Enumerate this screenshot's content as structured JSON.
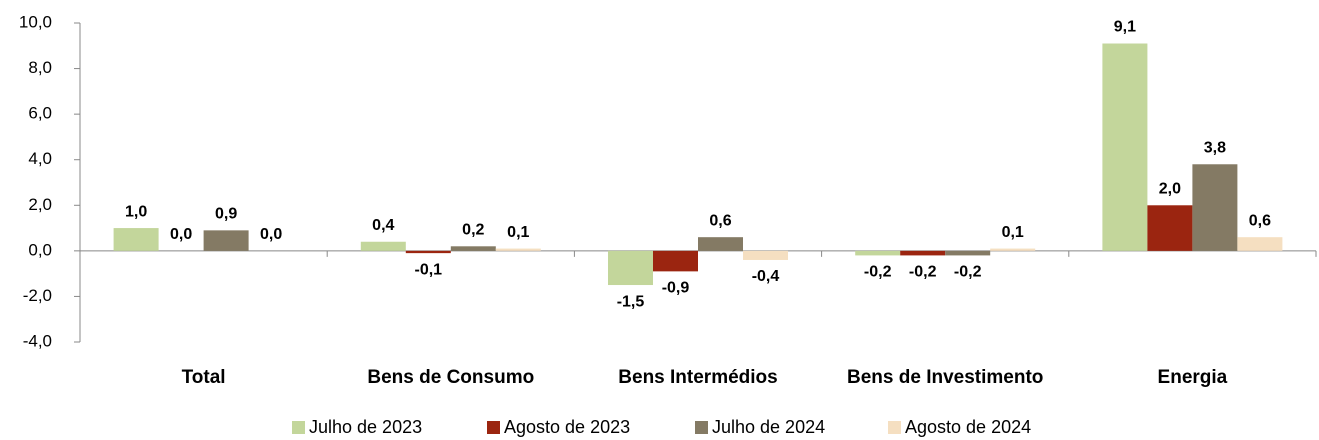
{
  "chart_data": {
    "type": "bar",
    "categories": [
      "Total",
      "Bens de Consumo",
      "Bens Intermédios",
      "Bens de Investimento",
      "Energia"
    ],
    "series": [
      {
        "name": "Julho de 2023",
        "color": "#c3d69b",
        "values": [
          1.0,
          0.4,
          -1.5,
          -0.2,
          9.1
        ],
        "value_labels": [
          "1,0",
          "0,4",
          "-1,5",
          "-0,2",
          "9,1"
        ]
      },
      {
        "name": "Agosto de 2023",
        "color": "#9b2510",
        "values": [
          0.0,
          -0.1,
          -0.9,
          -0.2,
          2.0
        ],
        "value_labels": [
          "0,0",
          "-0,1",
          "-0,9",
          "-0,2",
          "2,0"
        ]
      },
      {
        "name": "Julho de 2024",
        "color": "#847a64",
        "values": [
          0.9,
          0.2,
          0.6,
          -0.2,
          3.8
        ],
        "value_labels": [
          "0,9",
          "0,2",
          "0,6",
          "-0,2",
          "3,8"
        ]
      },
      {
        "name": "Agosto de 2024",
        "color": "#f5dfc1",
        "values": [
          0.0,
          0.1,
          -0.4,
          0.1,
          0.6
        ],
        "value_labels": [
          "0,0",
          "0,1",
          "-0,4",
          "0,1",
          "0,6"
        ]
      }
    ],
    "ylim": [
      -4,
      10
    ],
    "yticks": [
      {
        "value": -4,
        "label": "-4,0"
      },
      {
        "value": -2,
        "label": "-2,0"
      },
      {
        "value": 0,
        "label": "0,0"
      },
      {
        "value": 2,
        "label": "2,0"
      },
      {
        "value": 4,
        "label": "4,0"
      },
      {
        "value": 6,
        "label": "6,0"
      },
      {
        "value": 8,
        "label": "8,0"
      },
      {
        "value": 10,
        "label": "10,0"
      }
    ],
    "legend": "bottom"
  }
}
